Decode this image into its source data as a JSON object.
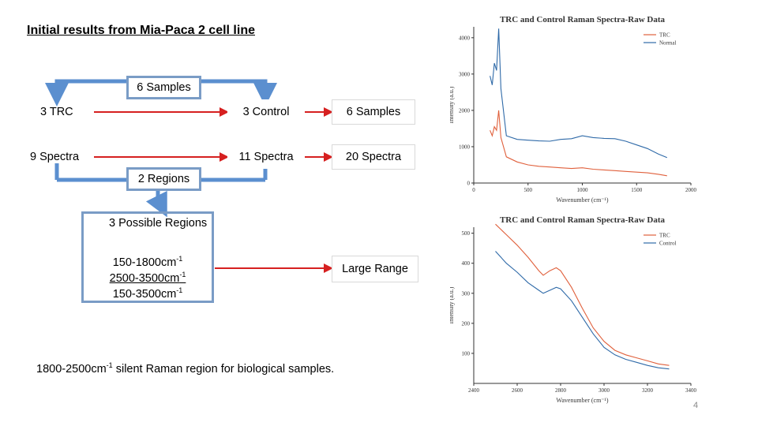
{
  "title": "Initial results from Mia-Paca 2 cell line",
  "diagram": {
    "top_samples": "6 Samples",
    "trc": "3 TRC",
    "control": "3 Control",
    "samples_total": "6 Samples",
    "spectra_left": "9 Spectra",
    "spectra_mid": "11 Spectra",
    "spectra_total": "20 Spectra",
    "regions": "2 Regions",
    "possible_regions": "3 Possible Regions",
    "range1": "150-1800cm",
    "range2": "2500-3500cm",
    "range3": "150-3500cm",
    "superscript": "-1",
    "large_range": "Large Range"
  },
  "note": {
    "before": "1800-2500cm",
    "sup": "-1",
    "after": " silent Raman region for biological samples."
  },
  "page_number": "4",
  "colors": {
    "box_border": "#7a9cc6",
    "arrow_blue": "#5b8fcf",
    "arrow_red": "#d62020",
    "trc_line": "#e0603c",
    "normal_line": "#2f6aa8"
  },
  "chart_data": [
    {
      "type": "line",
      "title": "TRC and Control Raman Spectra-Raw Data",
      "xlabel": "Wavenumber (cm⁻¹)",
      "ylabel": "Intensity (a.u.)",
      "xlim": [
        0,
        2000
      ],
      "ylim": [
        0,
        4300
      ],
      "xticks": [
        0,
        500,
        1000,
        1500,
        2000
      ],
      "yticks": [
        0,
        1000,
        2000,
        3000,
        4000
      ],
      "legend_position": "top-right",
      "series": [
        {
          "name": "TRC",
          "color": "#e0603c",
          "x": [
            150,
            170,
            190,
            210,
            230,
            250,
            300,
            400,
            500,
            600,
            700,
            800,
            900,
            1000,
            1100,
            1200,
            1300,
            1400,
            1500,
            1600,
            1700,
            1780
          ],
          "y": [
            1450,
            1300,
            1550,
            1450,
            2000,
            1250,
            720,
            580,
            500,
            460,
            440,
            420,
            400,
            420,
            380,
            360,
            340,
            320,
            300,
            280,
            240,
            200
          ]
        },
        {
          "name": "Normal",
          "color": "#2f6aa8",
          "x": [
            150,
            170,
            190,
            210,
            230,
            250,
            300,
            400,
            500,
            600,
            700,
            800,
            900,
            1000,
            1100,
            1200,
            1300,
            1400,
            1500,
            1600,
            1700,
            1780
          ],
          "y": [
            2950,
            2700,
            3300,
            3100,
            4250,
            2600,
            1300,
            1200,
            1180,
            1160,
            1150,
            1200,
            1220,
            1300,
            1250,
            1230,
            1220,
            1150,
            1050,
            950,
            800,
            700
          ]
        }
      ]
    },
    {
      "type": "line",
      "title": "TRC and Control Raman Spectra-Raw Data",
      "xlabel": "Wavenumber (cm⁻¹)",
      "ylabel": "Intensity (a.u.)",
      "xlim": [
        2400,
        3400
      ],
      "ylim": [
        0,
        520
      ],
      "xticks": [
        2400,
        2600,
        2800,
        3000,
        3200,
        3400
      ],
      "yticks": [
        100,
        200,
        300,
        400,
        500
      ],
      "legend_position": "top-right",
      "series": [
        {
          "name": "TRC",
          "color": "#e0603c",
          "x": [
            2500,
            2550,
            2600,
            2650,
            2700,
            2720,
            2750,
            2780,
            2800,
            2850,
            2900,
            2950,
            3000,
            3050,
            3100,
            3150,
            3200,
            3250,
            3300
          ],
          "y": [
            530,
            495,
            460,
            420,
            375,
            360,
            375,
            385,
            375,
            320,
            250,
            185,
            140,
            110,
            95,
            85,
            75,
            65,
            60
          ]
        },
        {
          "name": "Control",
          "color": "#2f6aa8",
          "x": [
            2500,
            2550,
            2600,
            2650,
            2700,
            2720,
            2750,
            2780,
            2800,
            2850,
            2900,
            2950,
            3000,
            3050,
            3100,
            3150,
            3200,
            3250,
            3300
          ],
          "y": [
            440,
            400,
            370,
            335,
            310,
            300,
            310,
            320,
            315,
            275,
            220,
            165,
            120,
            95,
            80,
            70,
            60,
            52,
            48
          ]
        }
      ]
    }
  ]
}
